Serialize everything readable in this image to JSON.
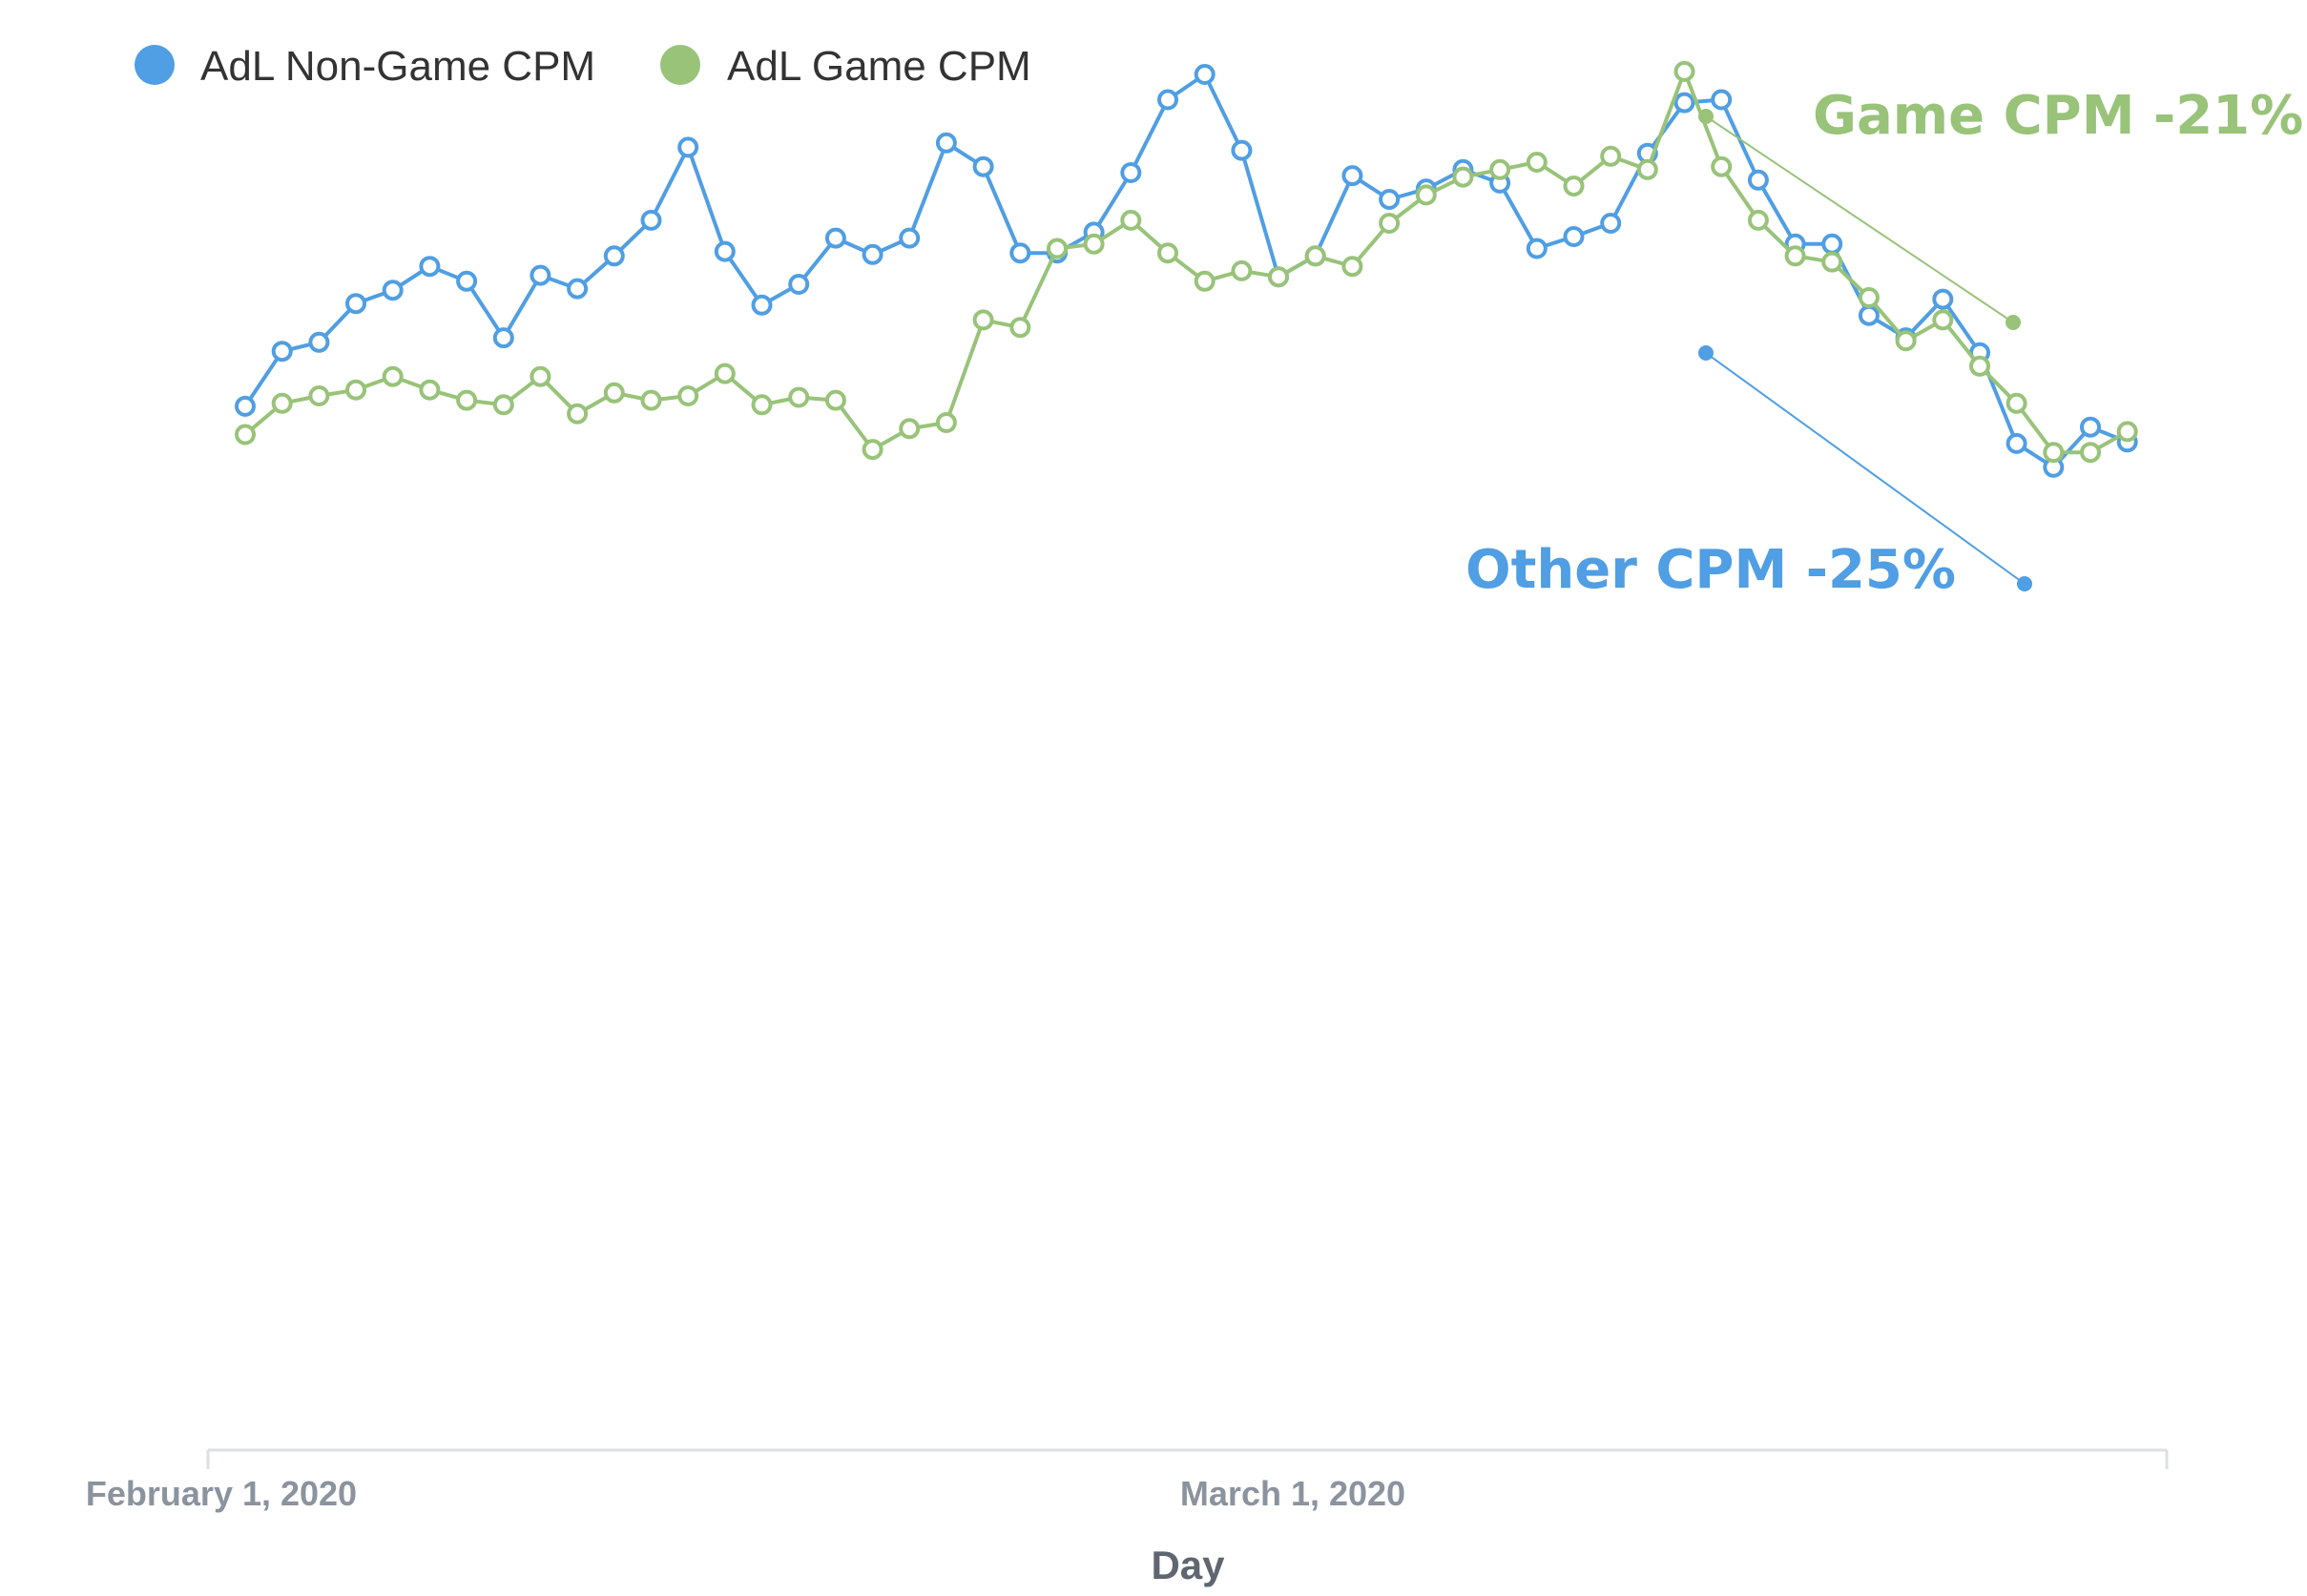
{
  "colors": {
    "non_game": "#509ee3",
    "game": "#98c379",
    "axis": "#dcdfe3",
    "tick_text": "#8a939e",
    "axis_title": "#5f6670",
    "legend_text": "#333333"
  },
  "chart_data": {
    "type": "line",
    "title": "",
    "xlabel": "Day",
    "ylabel": "",
    "x_ticks": [
      {
        "date": "2020-02-01",
        "label": "February 1, 2020"
      },
      {
        "date": "2020-03-01",
        "label": "March 1, 2020"
      }
    ],
    "y_axis_visible": false,
    "ylim": [
      0,
      100
    ],
    "grid": false,
    "legend_position": "top-left",
    "x": [
      "2020-02-02",
      "2020-02-03",
      "2020-02-04",
      "2020-02-05",
      "2020-02-06",
      "2020-02-07",
      "2020-02-08",
      "2020-02-09",
      "2020-02-10",
      "2020-02-11",
      "2020-02-12",
      "2020-02-13",
      "2020-02-14",
      "2020-02-15",
      "2020-02-16",
      "2020-02-17",
      "2020-02-18",
      "2020-02-19",
      "2020-02-20",
      "2020-02-21",
      "2020-02-22",
      "2020-02-23",
      "2020-02-24",
      "2020-02-25",
      "2020-02-26",
      "2020-02-27",
      "2020-02-28",
      "2020-02-29",
      "2020-03-01",
      "2020-03-02",
      "2020-03-03",
      "2020-03-04",
      "2020-03-05",
      "2020-03-06",
      "2020-03-07",
      "2020-03-08",
      "2020-03-09",
      "2020-03-10",
      "2020-03-11",
      "2020-03-12",
      "2020-03-13",
      "2020-03-14",
      "2020-03-15",
      "2020-03-16",
      "2020-03-17",
      "2020-03-18",
      "2020-03-19",
      "2020-03-20",
      "2020-03-21",
      "2020-03-22",
      "2020-03-23",
      "2020-03-24"
    ],
    "series": [
      {
        "name": "AdL Non-Game CPM",
        "color": "#509ee3",
        "values": [
          72.7,
          76.4,
          77.0,
          79.6,
          80.5,
          82.1,
          81.1,
          77.3,
          81.5,
          80.6,
          82.8,
          85.2,
          90.1,
          83.1,
          79.5,
          80.9,
          84.0,
          82.9,
          84.0,
          90.4,
          88.8,
          83.0,
          83.0,
          84.4,
          88.4,
          93.3,
          95.0,
          89.9,
          81.4,
          82.8,
          88.2,
          86.6,
          87.3,
          88.6,
          87.7,
          83.3,
          84.1,
          85.0,
          89.7,
          93.1,
          93.3,
          87.9,
          83.6,
          83.6,
          78.8,
          77.3,
          79.9,
          76.3,
          70.2,
          68.6,
          71.3,
          70.3
        ]
      },
      {
        "name": "AdL Game CPM",
        "color": "#98c379",
        "values": [
          70.8,
          72.9,
          73.4,
          73.8,
          74.7,
          73.8,
          73.1,
          72.8,
          74.7,
          72.2,
          73.6,
          73.1,
          73.4,
          74.9,
          72.8,
          73.3,
          73.1,
          69.8,
          71.2,
          71.6,
          78.5,
          78.0,
          83.3,
          83.6,
          85.2,
          83.0,
          81.1,
          81.8,
          81.4,
          82.8,
          82.1,
          85.0,
          86.9,
          88.1,
          88.6,
          89.1,
          87.5,
          89.5,
          88.6,
          95.2,
          88.8,
          85.2,
          82.8,
          82.4,
          80.0,
          77.1,
          78.5,
          75.4,
          72.9,
          69.6,
          69.6,
          71.0
        ]
      }
    ],
    "annotations": [
      {
        "text": "Game CPM -21%",
        "series": "AdL Game CPM",
        "change_percent": -21,
        "color": "#98c379"
      },
      {
        "text": "Other CPM -25%",
        "series": "AdL Non-Game CPM",
        "change_percent": -25,
        "color": "#509ee3"
      }
    ]
  }
}
